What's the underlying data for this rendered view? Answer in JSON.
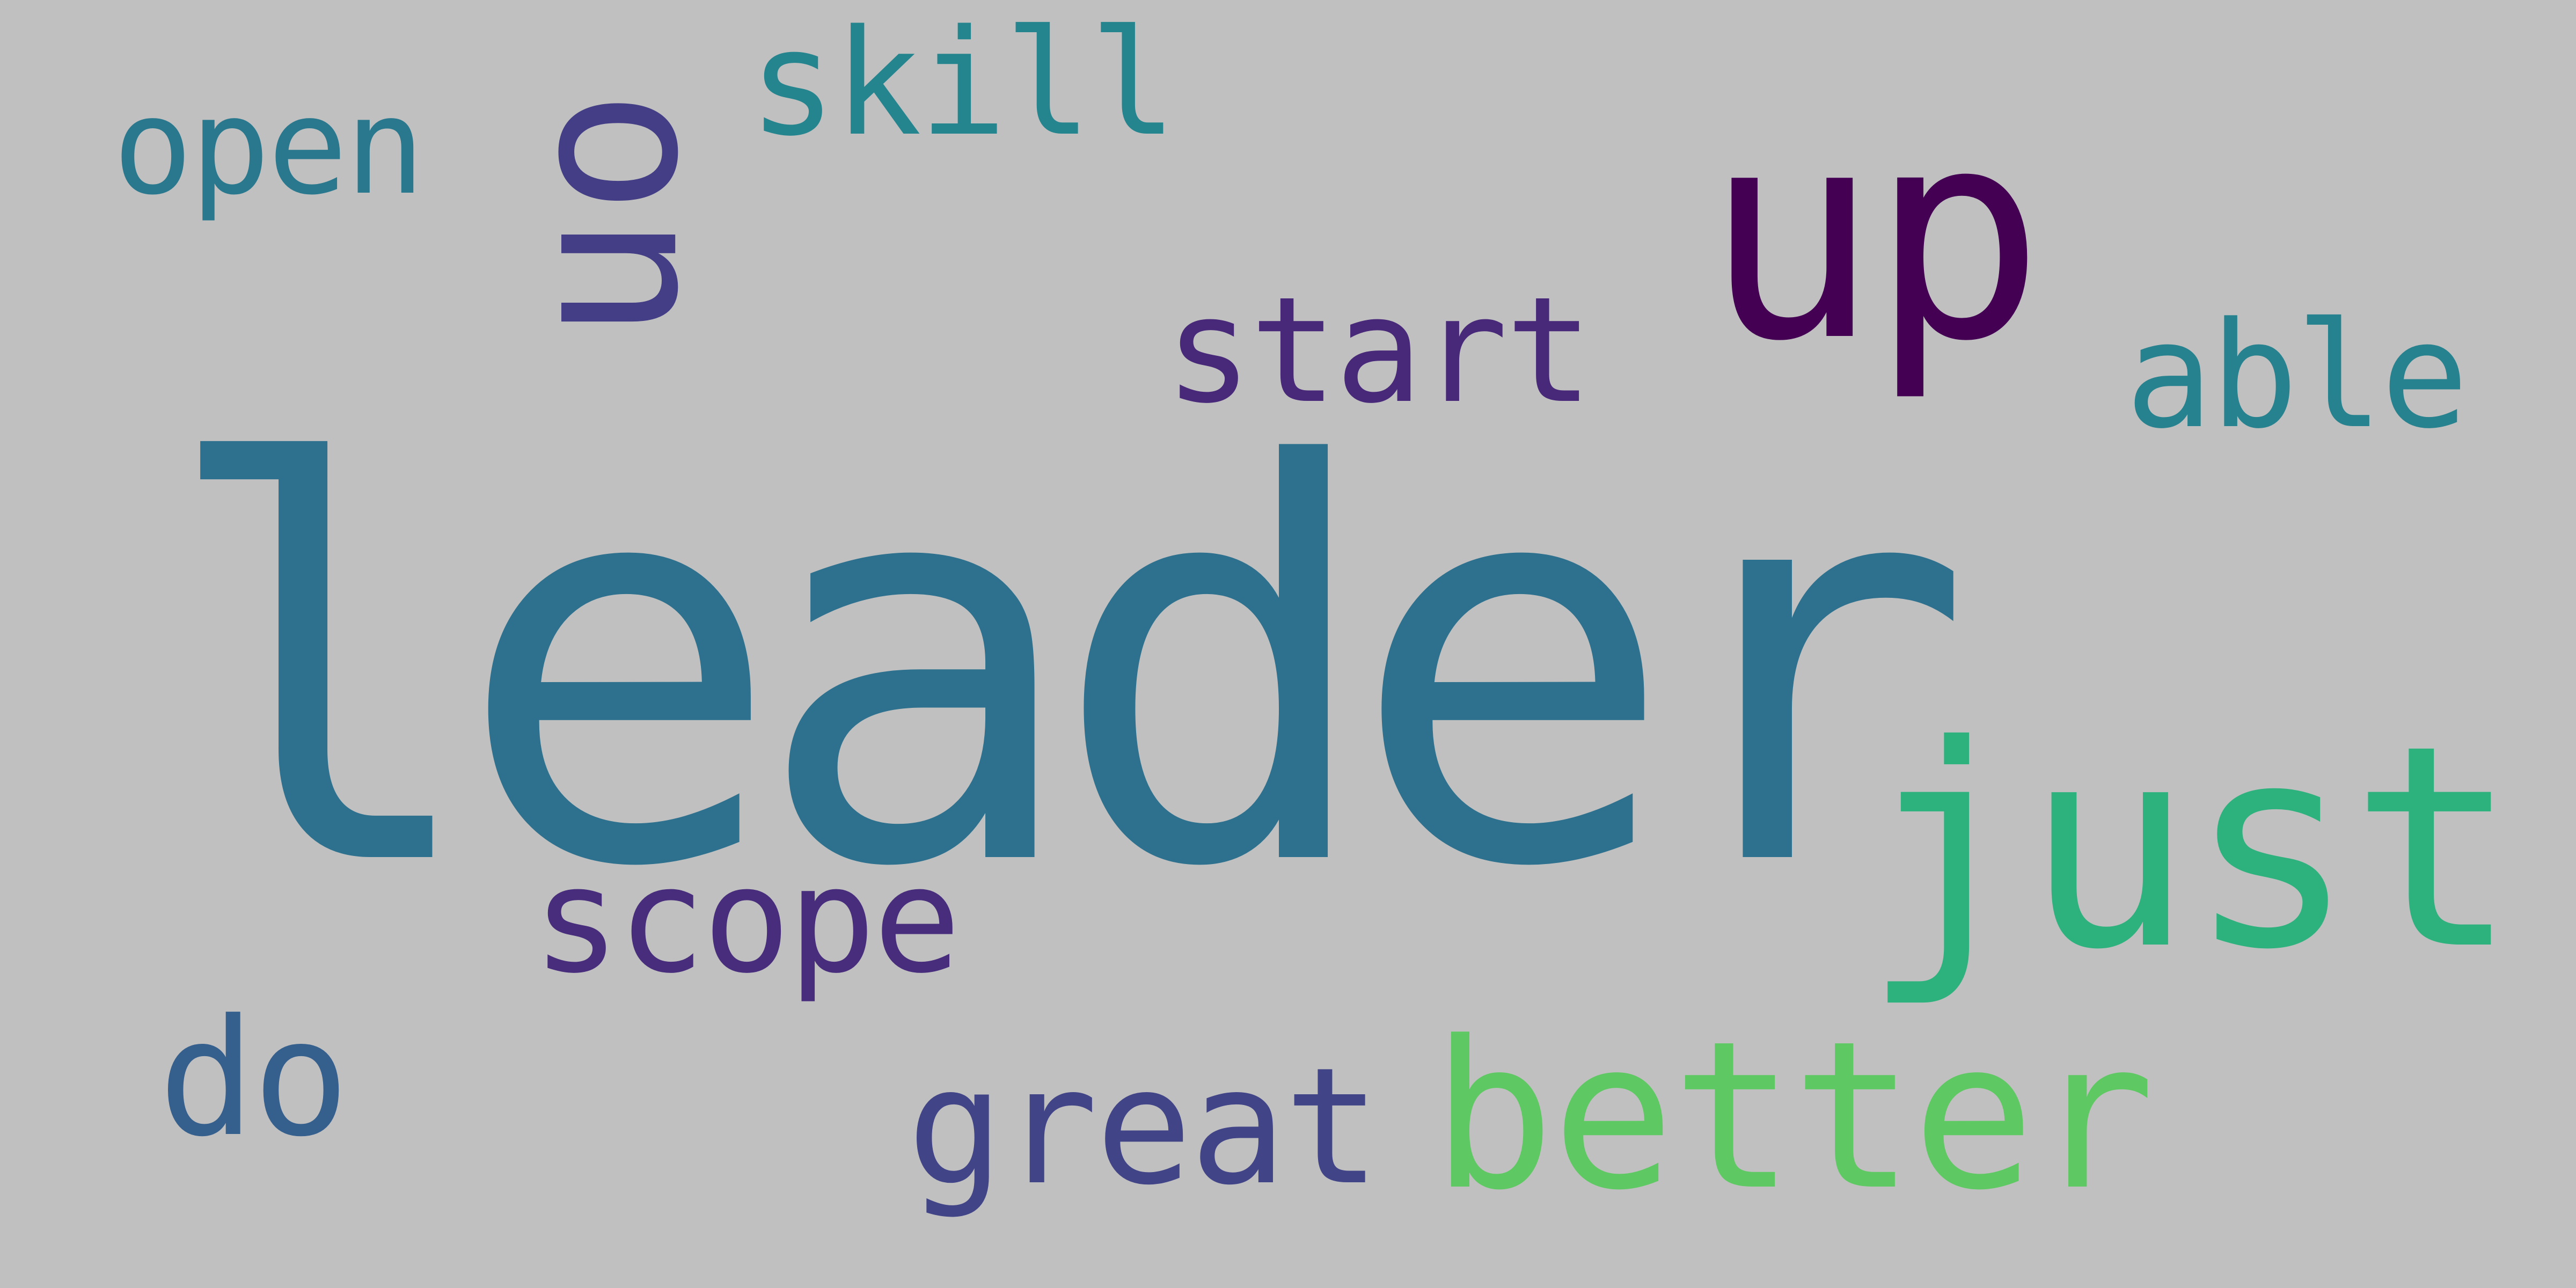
{
  "cloud": {
    "background": "#c0c0c0",
    "words": [
      {
        "text": "leader",
        "color": "#2e718e"
      },
      {
        "text": "just",
        "color": "#2db27d"
      },
      {
        "text": "up",
        "color": "#440154"
      },
      {
        "text": "better",
        "color": "#5ec962"
      },
      {
        "text": "on",
        "color": "#433e85"
      },
      {
        "text": "skill",
        "color": "#25858e"
      },
      {
        "text": "open",
        "color": "#2a788e"
      },
      {
        "text": "start",
        "color": "#482878"
      },
      {
        "text": "able",
        "color": "#26828e"
      },
      {
        "text": "scope",
        "color": "#472d7b"
      },
      {
        "text": "great",
        "color": "#414487"
      },
      {
        "text": "do",
        "color": "#355f8d"
      }
    ]
  }
}
